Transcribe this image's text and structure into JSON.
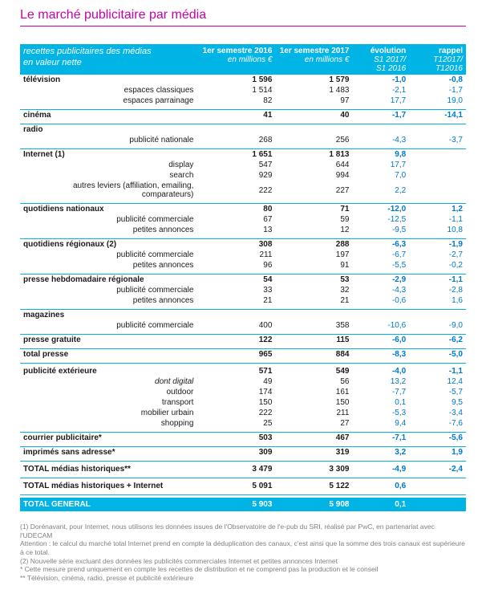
{
  "title": "Le marché publicitaire par média",
  "header": {
    "left_line1": "recettes publicitaires des médias",
    "left_line2": "en valeur nette",
    "s1": "1er semestre 2016",
    "s2": "1er semestre 2017",
    "unit": "en millions €",
    "ev_top": "évolution",
    "ev_l1": "S1 2017/",
    "ev_l2": "S1 2016",
    "ra_top": "rappel",
    "ra_l1": "T12017/",
    "ra_l2": "T12016"
  },
  "rows": [
    {
      "t": "cat",
      "l": "télévision",
      "s1": "1 596",
      "s2": "1 579",
      "ev": "-1,0",
      "ra": "-0,8"
    },
    {
      "t": "sub",
      "l": "espaces classiques",
      "s1": "1 514",
      "s2": "1 483",
      "ev": "-2,1",
      "ra": "-1,7"
    },
    {
      "t": "sub",
      "l": "espaces parrainage",
      "s1": "82",
      "s2": "97",
      "ev": "17,7",
      "ra": "19,0"
    },
    {
      "t": "sep"
    },
    {
      "t": "cat",
      "l": "cinéma",
      "s1": "41",
      "s2": "40",
      "ev": "-1,7",
      "ra": "-14,1"
    },
    {
      "t": "sep"
    },
    {
      "t": "cat",
      "l": "radio",
      "s1": "",
      "s2": "",
      "ev": "",
      "ra": ""
    },
    {
      "t": "sub",
      "l": "publicité nationale",
      "s1": "268",
      "s2": "256",
      "ev": "-4,3",
      "ra": "-3,7"
    },
    {
      "t": "sep"
    },
    {
      "t": "cat",
      "l": "Internet (1)",
      "s1": "1 651",
      "s2": "1 813",
      "ev": "9,8",
      "ra": ""
    },
    {
      "t": "sub",
      "l": "display",
      "s1": "547",
      "s2": "644",
      "ev": "17,7",
      "ra": ""
    },
    {
      "t": "sub",
      "l": "search",
      "s1": "929",
      "s2": "994",
      "ev": "7,0",
      "ra": ""
    },
    {
      "t": "sub",
      "l": "autres leviers (affiliation, emailing, comparateurs)",
      "s1": "222",
      "s2": "227",
      "ev": "2,2",
      "ra": ""
    },
    {
      "t": "sep"
    },
    {
      "t": "cat",
      "l": "quotidiens nationaux",
      "s1": "80",
      "s2": "71",
      "ev": "-12,0",
      "ra": "1,2"
    },
    {
      "t": "sub",
      "l": "publicité commerciale",
      "s1": "67",
      "s2": "59",
      "ev": "-12,5",
      "ra": "-1,1"
    },
    {
      "t": "sub",
      "l": "petites annonces",
      "s1": "13",
      "s2": "12",
      "ev": "-9,5",
      "ra": "10,8"
    },
    {
      "t": "sep"
    },
    {
      "t": "cat",
      "l": "quotidiens régionaux (2)",
      "s1": "308",
      "s2": "288",
      "ev": "-6,3",
      "ra": "-1,9"
    },
    {
      "t": "sub",
      "l": "publicité commerciale",
      "s1": "211",
      "s2": "197",
      "ev": "-6,7",
      "ra": "-2,7"
    },
    {
      "t": "sub",
      "l": "petites annonces",
      "s1": "96",
      "s2": "91",
      "ev": "-5,5",
      "ra": "-0,2"
    },
    {
      "t": "sep"
    },
    {
      "t": "cat",
      "l": "presse hebdomadaire régionale",
      "s1": "54",
      "s2": "53",
      "ev": "-2,9",
      "ra": "-1,1"
    },
    {
      "t": "sub",
      "l": "publicité commerciale",
      "s1": "33",
      "s2": "32",
      "ev": "-4,3",
      "ra": "-2,8"
    },
    {
      "t": "sub",
      "l": "petites annonces",
      "s1": "21",
      "s2": "21",
      "ev": "-0,6",
      "ra": "1,6"
    },
    {
      "t": "sep"
    },
    {
      "t": "cat",
      "l": "magazines",
      "s1": "",
      "s2": "",
      "ev": "",
      "ra": ""
    },
    {
      "t": "sub",
      "l": "publicité commerciale",
      "s1": "400",
      "s2": "358",
      "ev": "-10,6",
      "ra": "-9,0"
    },
    {
      "t": "sep"
    },
    {
      "t": "cat",
      "l": "presse gratuite",
      "s1": "122",
      "s2": "115",
      "ev": "-6,0",
      "ra": "-6,2"
    },
    {
      "t": "sep"
    },
    {
      "t": "cat",
      "l": "total presse",
      "s1": "965",
      "s2": "884",
      "ev": "-8,3",
      "ra": "-5,0"
    },
    {
      "t": "sep"
    },
    {
      "t": "gap"
    },
    {
      "t": "cat",
      "l": "publicité extérieure",
      "s1": "571",
      "s2": "549",
      "ev": "-4,0",
      "ra": "-1,1"
    },
    {
      "t": "subit",
      "l": "dont digital",
      "s1": "49",
      "s2": "56",
      "ev": "13,2",
      "ra": "12,4"
    },
    {
      "t": "sub",
      "l": "outdoor",
      "s1": "174",
      "s2": "161",
      "ev": "-7,7",
      "ra": "-5,7"
    },
    {
      "t": "sub",
      "l": "transport",
      "s1": "150",
      "s2": "150",
      "ev": "0,1",
      "ra": "9,5"
    },
    {
      "t": "sub",
      "l": "mobilier urbain",
      "s1": "222",
      "s2": "211",
      "ev": "-5,3",
      "ra": "-3,4"
    },
    {
      "t": "sub",
      "l": "shopping",
      "s1": "25",
      "s2": "27",
      "ev": "9,4",
      "ra": "-7,6"
    },
    {
      "t": "sep"
    },
    {
      "t": "cat",
      "l": "courrier publicitaire*",
      "s1": "503",
      "s2": "467",
      "ev": "-7,1",
      "ra": "-5,6"
    },
    {
      "t": "sep"
    },
    {
      "t": "cat",
      "l": "imprimés sans adresse*",
      "s1": "309",
      "s2": "319",
      "ev": "3,2",
      "ra": "1,9"
    },
    {
      "t": "sep"
    },
    {
      "t": "gap"
    },
    {
      "t": "cat",
      "l": "TOTAL médias historiques**",
      "s1": "3 479",
      "s2": "3 309",
      "ev": "-4,9",
      "ra": "-2,4"
    },
    {
      "t": "sep"
    },
    {
      "t": "gap"
    },
    {
      "t": "cat",
      "l": "TOTAL médias historiques + Internet",
      "s1": "5 091",
      "s2": "5 122",
      "ev": "0,6",
      "ra": ""
    },
    {
      "t": "sep"
    },
    {
      "t": "gap"
    },
    {
      "t": "totgen",
      "l": "TOTAL GENERAL",
      "s1": "5 903",
      "s2": "5 908",
      "ev": "0,1",
      "ra": ""
    }
  ],
  "footnotes": [
    "(1) Dorénavant, pour Internet, nous utilisons les données issues de l'Observatoire de l'e-pub du SRI, réalisé par PwC, en partenariat avec l'UDECAM",
    "Attention : le calcul du marché total Internet prend en compte la déduplication des canaux, c'est ainsi que la somme des trois canaux est supérieure à ce total.",
    "(2) Nouvelle série excluant des données les publicités commerciales Internet et petites annonces Internet",
    "* Cette mesure prend uniquement en compte les recettes de distribution et ne comprend pas la production et le conseil",
    "** Télévision, cinéma, radio, presse et publicité extérieure"
  ]
}
